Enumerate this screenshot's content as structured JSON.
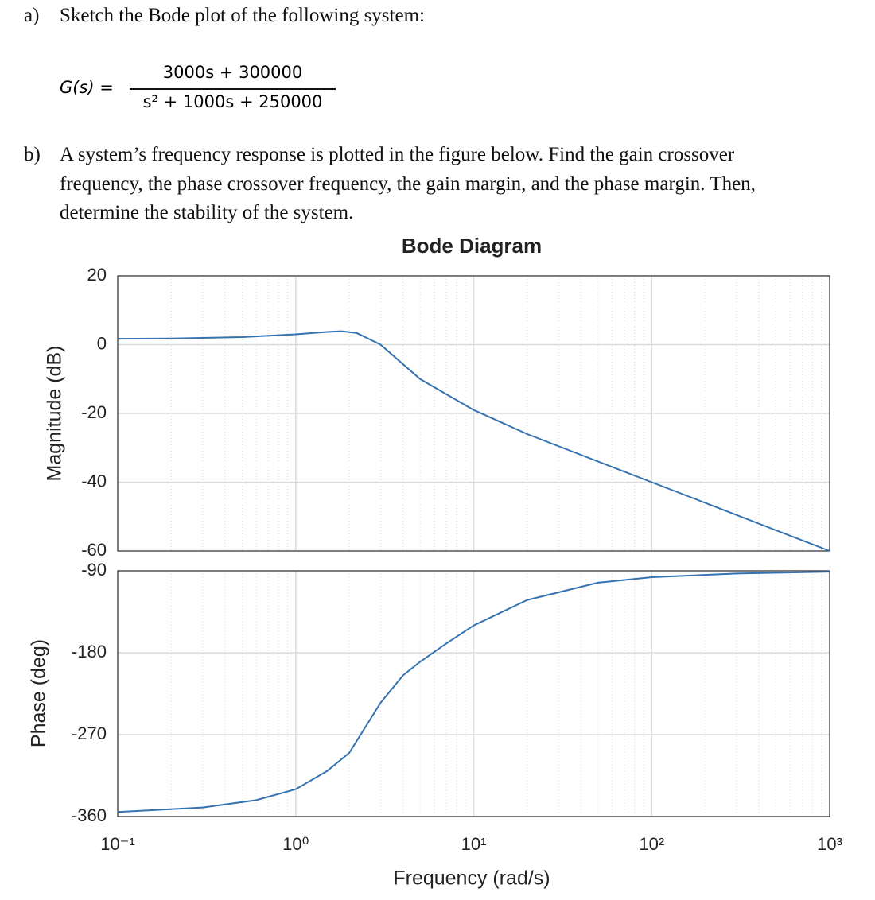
{
  "document": {
    "part_a": {
      "label": "a)",
      "text": "Sketch the Bode plot of the following system:"
    },
    "formula": {
      "lhs": "G(s) =",
      "numerator": "3000s + 300000",
      "denominator": "s² + 1000s + 250000"
    },
    "part_b": {
      "label": "b)",
      "lines": [
        "A system’s frequency response is plotted in the figure below. Find the gain crossover",
        "frequency, the phase crossover frequency, the gain margin, and the phase margin. Then,",
        "determine the stability of the system."
      ]
    }
  },
  "chart_data": [
    {
      "type": "line",
      "title": "Bode Diagram",
      "ylabel": "Magnitude (dB)",
      "xscale": "log",
      "grid": true,
      "x": [
        0.1,
        0.2,
        0.5,
        1,
        1.5,
        1.8,
        2.2,
        3,
        5,
        10,
        20,
        50,
        100,
        200,
        500,
        1000
      ],
      "series": [
        {
          "color": "#3572b0",
          "values": [
            1.7,
            1.8,
            2.2,
            3,
            3.7,
            3.9,
            3.4,
            0,
            -10,
            -19,
            -26,
            -34,
            -40,
            -46,
            -54,
            -60
          ]
        }
      ],
      "xlim": [
        0.1,
        1000
      ],
      "ylim": [
        -60,
        20
      ],
      "yticks": [
        20,
        0,
        -20,
        -40,
        -60
      ]
    },
    {
      "type": "line",
      "ylabel": "Phase (deg)",
      "xlabel": "Frequency  (rad/s)",
      "xscale": "log",
      "grid": true,
      "x": [
        0.1,
        0.3,
        0.6,
        1,
        1.5,
        2,
        3,
        4,
        5,
        7,
        10,
        20,
        50,
        100,
        300,
        1000
      ],
      "series": [
        {
          "color": "#3572b0",
          "values": [
            -355,
            -350,
            -342,
            -330,
            -310,
            -290,
            -235,
            -205,
            -190,
            -170,
            -150,
            -122,
            -103,
            -97,
            -93,
            -91
          ]
        }
      ],
      "xlim": [
        0.1,
        1000
      ],
      "ylim": [
        -360,
        -90
      ],
      "yticks": [
        -90,
        -180,
        -270,
        -360
      ],
      "xticks": [
        {
          "value": 0.1,
          "label": "10⁻¹"
        },
        {
          "value": 1,
          "label": "10⁰"
        },
        {
          "value": 10,
          "label": "10¹"
        },
        {
          "value": 100,
          "label": "10²"
        },
        {
          "value": 1000,
          "label": "10³"
        }
      ]
    }
  ]
}
